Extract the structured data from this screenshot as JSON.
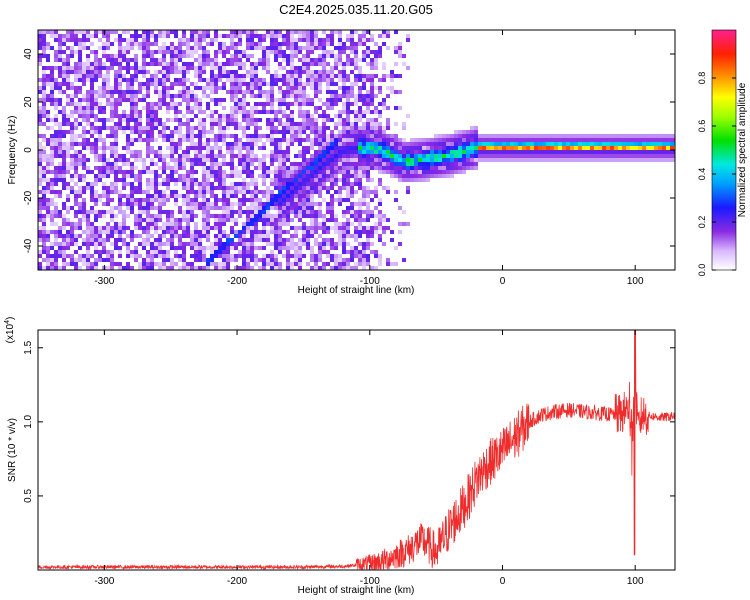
{
  "title": "C2E4.2025.035.11.20.G05",
  "chart_data": [
    {
      "type": "heatmap",
      "xlabel": "Height of straight line (km)",
      "ylabel": "Frequency (Hz)",
      "xlim": [
        -350,
        130
      ],
      "ylim": [
        -50,
        50
      ],
      "xticks": [
        "-300",
        "-200",
        "-100",
        "0",
        "100"
      ],
      "yticks": [
        "-40",
        "-20",
        "0",
        "20",
        "40"
      ],
      "colorbar": {
        "label": "Normalized spectral amplitude",
        "ticks": [
          "0.0",
          "0.2",
          "0.4",
          "0.6",
          "0.8"
        ],
        "range": [
          0,
          1
        ]
      },
      "features": {
        "noise_region_x": [
          -350,
          -110
        ],
        "ridge": {
          "x": [
            -225,
            -190,
            -160,
            -140,
            -120,
            -100,
            -85,
            -75,
            -60,
            -40,
            -20,
            0,
            130
          ],
          "y": [
            -50,
            -32,
            -18,
            -8,
            0,
            1,
            -2,
            -5,
            -4,
            -2,
            1,
            1,
            1
          ]
        },
        "diagonal_streak": {
          "x": [
            -225,
            -125
          ],
          "y": [
            -48,
            4
          ]
        },
        "steady_line": {
          "x": [
            -20,
            130
          ],
          "y": 1
        }
      }
    },
    {
      "type": "line",
      "xlabel": "Height of straight line (km)",
      "ylabel": "SNR (10 * v/v)",
      "multiplier": "(x10",
      "multiplier_exp": "4",
      "xlim": [
        -350,
        130
      ],
      "ylim": [
        0.0,
        1.62
      ],
      "xticks": [
        "-300",
        "-200",
        "-100",
        "0",
        "100"
      ],
      "yticks": [
        "0.5",
        "1.0",
        "1.5"
      ],
      "line_color": "#ee2c2c",
      "series": [
        {
          "x": [
            -350,
            -300,
            -250,
            -200,
            -150,
            -120,
            -100,
            -90,
            -80,
            -70,
            -65,
            -60,
            -55,
            -50,
            -45,
            -40,
            -35,
            -30,
            -25,
            -20,
            -15,
            -10,
            -5,
            0,
            10,
            20,
            30,
            40,
            50,
            60,
            70,
            80,
            90,
            95,
            98,
            100,
            102,
            105,
            110,
            120,
            130
          ],
          "y": [
            0.02,
            0.02,
            0.02,
            0.02,
            0.02,
            0.025,
            0.04,
            0.06,
            0.1,
            0.14,
            0.18,
            0.2,
            0.16,
            0.12,
            0.2,
            0.28,
            0.35,
            0.42,
            0.5,
            0.6,
            0.67,
            0.72,
            0.76,
            0.8,
            0.9,
            1.0,
            1.05,
            1.07,
            1.08,
            1.07,
            1.06,
            1.05,
            1.05,
            1.1,
            0.9,
            1.25,
            0.95,
            1.05,
            1.04,
            1.03,
            1.04
          ]
        }
      ]
    }
  ]
}
